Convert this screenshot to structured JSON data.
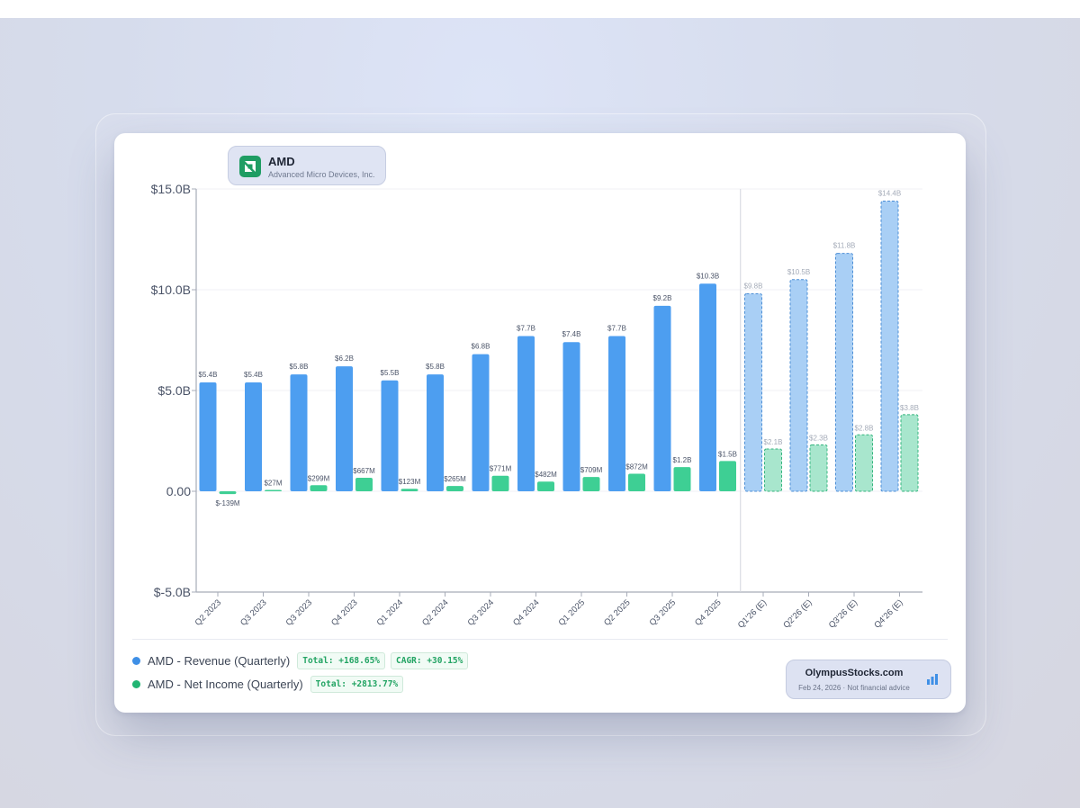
{
  "company": {
    "ticker": "AMD",
    "name": "Advanced Micro Devices, Inc.",
    "logo_icon": "amd-logo-icon",
    "logo_color": "#1f9d63"
  },
  "legend": {
    "revenue_label": "AMD - Revenue (Quarterly)",
    "revenue_total": "Total: +168.65%",
    "revenue_cagr": "CAGR: +30.15%",
    "income_label": "AMD - Net Income (Quarterly)",
    "income_total": "Total: +2813.77%"
  },
  "watermark": {
    "site": "OlympusStocks.com",
    "note": "Feb 24, 2026 · Not financial advice",
    "icon": "bar-chart-icon"
  },
  "colors": {
    "revenue": "#4d9ef0",
    "net_income": "#3ecf94",
    "revenue_estimate": "#a9cff5",
    "net_income_estimate": "#a8e6cd"
  },
  "chart_data": {
    "type": "bar",
    "categories": [
      "Q2 2023",
      "Q3 2023",
      "Q3 2023",
      "Q4 2023",
      "Q1 2024",
      "Q2 2024",
      "Q3 2024",
      "Q4 2024",
      "Q1 2025",
      "Q2 2025",
      "Q3 2025",
      "Q4 2025",
      "Q1'26 (E)",
      "Q2'26 (E)",
      "Q3'26 (E)",
      "Q4'26 (E)"
    ],
    "estimate_from_index": 12,
    "series": [
      {
        "name": "AMD - Revenue (Quarterly)",
        "values": [
          5.4,
          5.4,
          5.8,
          6.2,
          5.5,
          5.8,
          6.8,
          7.7,
          7.4,
          7.7,
          9.2,
          10.3,
          9.8,
          10.5,
          11.8,
          14.4
        ],
        "labels": [
          "$5.4B",
          "$5.4B",
          "$5.8B",
          "$6.2B",
          "$5.5B",
          "$5.8B",
          "$6.8B",
          "$7.7B",
          "$7.4B",
          "$7.7B",
          "$9.2B",
          "$10.3B",
          "$9.8B",
          "$10.5B",
          "$11.8B",
          "$14.4B"
        ]
      },
      {
        "name": "AMD - Net Income (Quarterly)",
        "values": [
          -0.139,
          0.027,
          0.299,
          0.667,
          0.123,
          0.265,
          0.771,
          0.482,
          0.709,
          0.872,
          1.2,
          1.5,
          2.1,
          2.3,
          2.8,
          3.8
        ],
        "labels": [
          "$-139M",
          "$27M",
          "$299M",
          "$667M",
          "$123M",
          "$265M",
          "$771M",
          "$482M",
          "$709M",
          "$872M",
          "$1.2B",
          "$1.5B",
          "$2.1B",
          "$2.3B",
          "$2.8B",
          "$3.8B"
        ]
      }
    ],
    "yticks": [
      "$15.0B",
      "$10.0B",
      "$5.0B",
      "0.00",
      "$-5.0B"
    ],
    "ytick_values": [
      15,
      10,
      5,
      0,
      -5
    ],
    "ylim": [
      -5,
      15
    ],
    "grid": true,
    "legend_position": "bottom-left"
  }
}
